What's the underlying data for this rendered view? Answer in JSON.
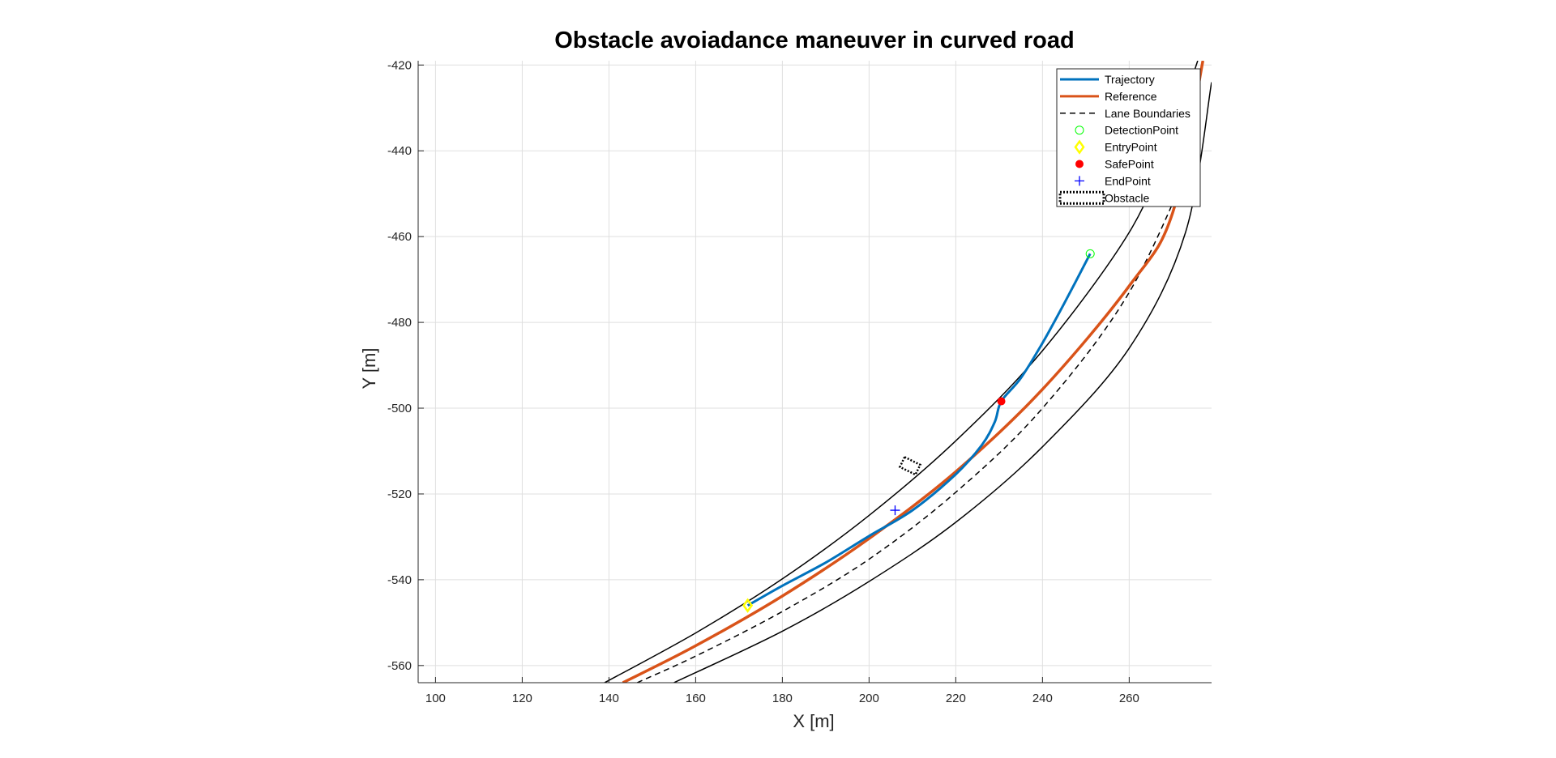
{
  "chart_data": {
    "type": "line",
    "title": "Obstacle avoiadance maneuver in curved road",
    "xlabel": "X [m]",
    "ylabel": "Y [m]",
    "xlim": [
      96,
      279
    ],
    "ylim": [
      -564,
      -419
    ],
    "x_ticks": [
      100,
      120,
      140,
      160,
      180,
      200,
      220,
      240,
      260
    ],
    "y_ticks": [
      -420,
      -440,
      -460,
      -480,
      -500,
      -520,
      -540,
      -560
    ],
    "grid": true,
    "legend_position": "top-right",
    "colors": {
      "trajectory": "#0072BD",
      "reference": "#D95319",
      "lane_boundaries": "#000000",
      "road_edges": "#000000",
      "detection_point": "#00ff00",
      "entry_point": "#ffff00",
      "safe_point": "#ff0000",
      "end_point": "#0000ff",
      "obstacle": "#000000"
    },
    "legend": [
      {
        "label": "Trajectory",
        "key": "trajectory",
        "style": "line"
      },
      {
        "label": "Reference",
        "key": "reference",
        "style": "line"
      },
      {
        "label": "Lane Boundaries",
        "key": "lane_boundaries",
        "style": "dashed"
      },
      {
        "label": "DetectionPoint",
        "key": "detection_point",
        "style": "circle"
      },
      {
        "label": "EntryPoint",
        "key": "entry_point",
        "style": "diamond"
      },
      {
        "label": "SafePoint",
        "key": "safe_point",
        "style": "dot"
      },
      {
        "label": "EndPoint",
        "key": "end_point",
        "style": "plus"
      },
      {
        "label": "Obstacle",
        "key": "obstacle",
        "style": "box"
      }
    ],
    "series": [
      {
        "name": "Reference",
        "key": "reference",
        "x": [
          143.2,
          160,
          180,
          200,
          220,
          240,
          260,
          270,
          277
        ],
        "y": [
          -564,
          -555.4,
          -543.8,
          -530.4,
          -514.8,
          -495.6,
          -471.5,
          -454.5,
          -419
        ]
      },
      {
        "name": "Trajectory",
        "key": "trajectory",
        "x": [
          172,
          180,
          190,
          200,
          210,
          220,
          226,
          229,
          230.5,
          235,
          240,
          245,
          251
        ],
        "y": [
          -546,
          -541.4,
          -536,
          -529.8,
          -523.8,
          -515.4,
          -508.6,
          -503.2,
          -498.4,
          -493,
          -484.8,
          -475.6,
          -464
        ]
      },
      {
        "name": "Lane Boundaries",
        "key": "lane_boundaries",
        "x": [
          146.5,
          160,
          180,
          200,
          220,
          240,
          260,
          275.3
        ],
        "y": [
          -564,
          -557.8,
          -547.4,
          -535.2,
          -519.6,
          -500,
          -473,
          -440
        ]
      },
      {
        "key": "road_edges",
        "x": [
          139,
          160,
          180,
          200,
          220,
          240,
          260,
          269.5,
          275.8
        ],
        "y": [
          -564,
          -552.4,
          -539.8,
          -525,
          -507.6,
          -486.6,
          -459,
          -437.5,
          -419
        ]
      },
      {
        "key": "road_edges",
        "x": [
          155,
          180,
          200,
          220,
          240,
          260,
          273,
          279
        ],
        "y": [
          -564,
          -552,
          -540.4,
          -526.6,
          -509,
          -486,
          -459,
          -424
        ]
      }
    ],
    "points": {
      "detection": {
        "x": 251,
        "y": -464
      },
      "entry": {
        "x": 172,
        "y": -546
      },
      "safe": {
        "x": 230.5,
        "y": -498.4
      },
      "end": {
        "x": 206,
        "y": -523.8
      }
    },
    "obstacle": {
      "x": [
        208.2,
        211.8,
        210.7,
        207.1,
        208.2
      ],
      "y": [
        -511.4,
        -513.2,
        -515.5,
        -513.7,
        -511.4
      ]
    }
  }
}
